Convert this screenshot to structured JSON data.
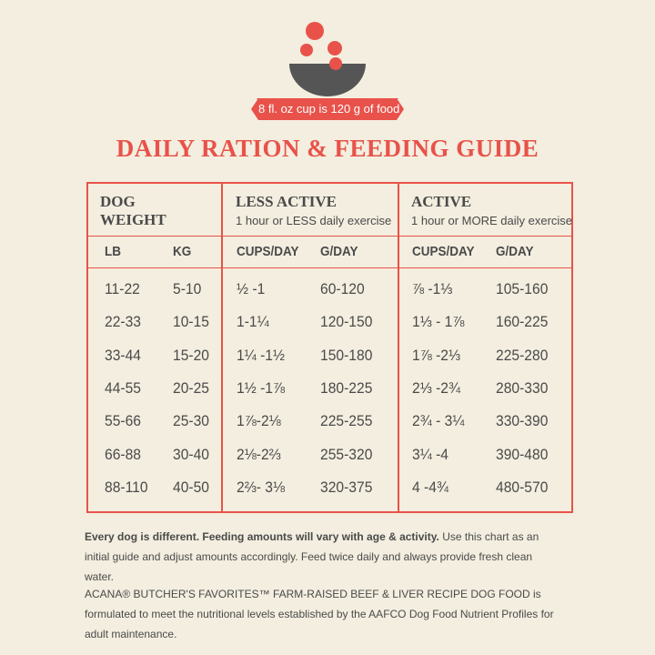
{
  "badge": "8 fl. oz cup is 120 g of food",
  "title": "DAILY RATION & FEEDING GUIDE",
  "table": {
    "groups": [
      {
        "title": "DOG WEIGHT"
      },
      {
        "title": "LESS ACTIVE",
        "subtitle": "1 hour or LESS daily exercise"
      },
      {
        "title": "ACTIVE",
        "subtitle": "1 hour or MORE daily exercise"
      }
    ],
    "columns": [
      "LB",
      "KG",
      "CUPS/DAY",
      "G/DAY",
      "CUPS/DAY",
      "G/DAY"
    ],
    "rows": [
      [
        "11-22",
        "5-10",
        "½ -1",
        "60-120",
        "⅞ -1⅓",
        "105-160"
      ],
      [
        "22-33",
        "10-15",
        "1-1¼",
        "120-150",
        "1⅓ - 1⅞",
        "160-225"
      ],
      [
        "33-44",
        "15-20",
        "1¼ -1½",
        "150-180",
        "1⅞ -2⅓",
        "225-280"
      ],
      [
        "44-55",
        "20-25",
        "1½ -1⅞",
        "180-225",
        "2⅓ -2¾",
        "280-330"
      ],
      [
        "55-66",
        "25-30",
        "1⅞-2⅛",
        "225-255",
        "2¾ - 3¼",
        "330-390"
      ],
      [
        "66-88",
        "30-40",
        "2⅛-2⅔",
        "255-320",
        "3¼ -4",
        "390-480"
      ],
      [
        "88-110",
        "40-50",
        "2⅔- 3⅛",
        "320-375",
        "4 -4¾",
        "480-570"
      ]
    ]
  },
  "footnotes": [
    {
      "bold": "Every dog is different. Feeding amounts will vary with age & activity.",
      "text": "Use this chart as an initial guide and adjust amounts accordingly. Feed twice daily and always provide fresh clean water."
    },
    {
      "text": "ACANA® BUTCHER'S FAVORITES™ FARM-RAISED BEEF & LIVER RECIPE DOG FOOD is formulated to meet the nutritional levels established by the AAFCO Dog Food Nutrient Profiles for adult maintenance."
    }
  ]
}
